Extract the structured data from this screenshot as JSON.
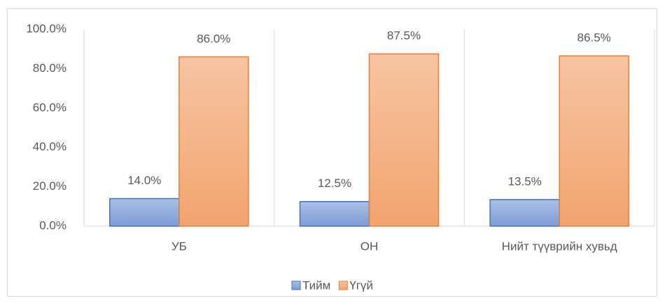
{
  "chart_data": {
    "type": "bar",
    "categories": [
      "УБ",
      "ОН",
      "Нийт түүврийн хувьд"
    ],
    "series": [
      {
        "name": "Тийм",
        "color": "#4472c4",
        "values": [
          14.0,
          12.5,
          13.5
        ],
        "value_labels": [
          "14.0%",
          "12.5%",
          "13.5%"
        ]
      },
      {
        "name": "Үгүй",
        "color": "#ed7d31",
        "values": [
          86.0,
          87.5,
          86.5
        ],
        "value_labels": [
          "86.0%",
          "87.5%",
          "86.5%"
        ]
      }
    ],
    "ylim": [
      0,
      100
    ],
    "yticks": [
      {
        "value": 0,
        "label": "0.0%"
      },
      {
        "value": 20,
        "label": "20.0%"
      },
      {
        "value": 40,
        "label": "40.0%"
      },
      {
        "value": 60,
        "label": "60.0%"
      },
      {
        "value": 80,
        "label": "80.0%"
      },
      {
        "value": 100,
        "label": "100.0%"
      }
    ],
    "legend": "bottom"
  }
}
